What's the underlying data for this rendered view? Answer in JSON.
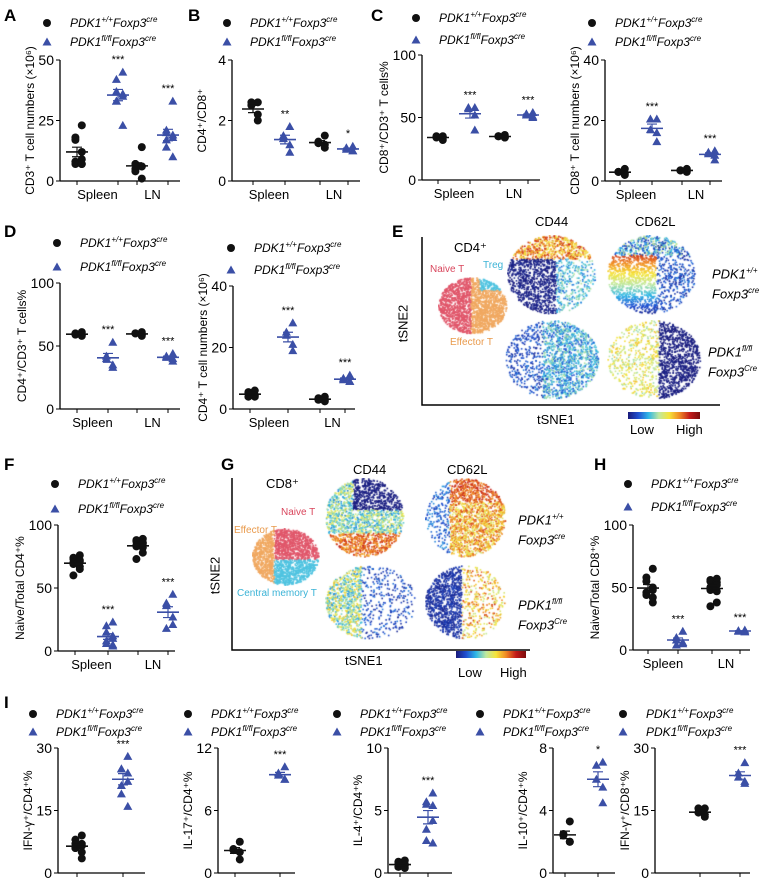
{
  "panel_labels": [
    "A",
    "B",
    "C",
    "D",
    "E",
    "F",
    "G",
    "H",
    "I"
  ],
  "legend": {
    "wt": [
      "PDK1",
      "+/+",
      "Foxp3",
      "cre"
    ],
    "ko": [
      "PDK1",
      "fl/fl",
      "Foxp3",
      "cre"
    ]
  },
  "colors": {
    "wt": "#111111",
    "ko": "#3b4fa6"
  },
  "tsne_E": {
    "subset": "CD4⁺",
    "markers": [
      "CD44",
      "CD62L"
    ],
    "clusters": [
      "Naive T",
      "Treg",
      "Effector T"
    ],
    "cluster_colors": [
      "#e0566a",
      "#4fc3e0",
      "#f0a860"
    ],
    "xlabel": "tSNE1",
    "ylabel": "tSNE2",
    "colorbar": [
      "Low",
      "High"
    ],
    "rows": [
      {
        "gene": "PDK1",
        "geno": "+/+",
        "foxp": "Foxp3",
        "cre": "cre"
      },
      {
        "gene": "PDK1",
        "geno": "fl/fl",
        "foxp": "Foxp3",
        "cre": "Cre"
      }
    ]
  },
  "tsne_G": {
    "subset": "CD8⁺",
    "markers": [
      "CD44",
      "CD62L"
    ],
    "clusters": [
      "Naive T",
      "Effector T",
      "Central memory T"
    ],
    "cluster_colors": [
      "#e0566a",
      "#f0a860",
      "#4fc3e0"
    ],
    "xlabel": "tSNE1",
    "ylabel": "tSNE2",
    "colorbar": [
      "Low",
      "High"
    ],
    "rows": [
      {
        "gene": "PDK1",
        "geno": "+/+",
        "foxp": "Foxp3",
        "cre": "cre"
      },
      {
        "gene": "PDK1",
        "geno": "fl/fl",
        "foxp": "Foxp3",
        "cre": "Cre"
      }
    ]
  },
  "chart_data": [
    {
      "panel": "A",
      "type": "scatter",
      "ylabel": "CD3⁺ T cell numbers (×10⁶)",
      "ylim": [
        0,
        50
      ],
      "yticks": [
        "0",
        "25",
        "50"
      ],
      "categories": [
        "Spleen",
        "LN"
      ],
      "series": [
        {
          "name": "PDK1+/+Foxp3cre",
          "groups": [
            [
              23,
              18,
              17,
              12,
              9,
              8,
              7,
              7,
              7
            ],
            [
              14,
              7,
              7,
              6,
              6,
              5,
              4,
              1
            ]
          ]
        },
        {
          "name": "PDK1fl/flFoxp3cre",
          "groups": [
            [
              45,
              42,
              37,
              36,
              35,
              33,
              33,
              23
            ],
            [
              33,
              21,
              20,
              19,
              18,
              17,
              14,
              10
            ]
          ]
        }
      ],
      "significance": [
        "***",
        "***"
      ]
    },
    {
      "panel": "B",
      "type": "scatter",
      "ylabel": "CD4⁺/CD8⁺",
      "ylim": [
        0,
        4
      ],
      "yticks": [
        "0",
        "2",
        "4"
      ],
      "categories": [
        "Spleen",
        "LN"
      ],
      "series": [
        {
          "name": "PDK1+/+Foxp3cre",
          "groups": [
            [
              2.6,
              2.6,
              2.5,
              2.2,
              2.0
            ],
            [
              1.5,
              1.3,
              1.25,
              1.2,
              1.1
            ]
          ]
        },
        {
          "name": "PDK1fl/flFoxp3cre",
          "groups": [
            [
              1.8,
              1.5,
              1.4,
              1.2,
              0.95
            ],
            [
              1.15,
              1.1,
              1.05,
              1.0,
              1.0
            ]
          ]
        }
      ],
      "significance": [
        "**",
        "*"
      ]
    },
    {
      "panel": "C",
      "type": "scatter",
      "ylabel": "CD8⁺/CD3⁺ T cells%",
      "ylim": [
        0,
        100
      ],
      "yticks": [
        "0",
        "50",
        "100"
      ],
      "categories": [
        "Spleen",
        "LN"
      ],
      "series": [
        {
          "name": "PDK1+/+Foxp3cre",
          "groups": [
            [
              35,
              35,
              34,
              34,
              32
            ],
            [
              36,
              35,
              35,
              34,
              34
            ]
          ]
        },
        {
          "name": "PDK1fl/flFoxp3cre",
          "groups": [
            [
              58,
              58,
              57,
              52,
              40
            ],
            [
              54,
              53,
              52,
              51,
              50
            ]
          ]
        }
      ],
      "significance": [
        "***",
        "***"
      ]
    },
    {
      "panel": "C",
      "type": "scatter",
      "ylabel": "CD8⁺ T cell numbers (×10⁶)",
      "ylim": [
        0,
        40
      ],
      "yticks": [
        "0",
        "20",
        "40"
      ],
      "categories": [
        "Spleen",
        "LN"
      ],
      "series": [
        {
          "name": "PDK1+/+Foxp3cre",
          "groups": [
            [
              4,
              3,
              3,
              2.5,
              2
            ],
            [
              4,
              3.5,
              3.5,
              3.5,
              3
            ]
          ]
        },
        {
          "name": "PDK1fl/flFoxp3cre",
          "groups": [
            [
              20.5,
              20.5,
              17,
              16,
              13
            ],
            [
              10,
              9.5,
              9,
              8.5,
              7
            ]
          ]
        }
      ],
      "significance": [
        "***",
        "***"
      ]
    },
    {
      "panel": "D",
      "type": "scatter",
      "ylabel": "CD4⁺/CD3⁺ T cells%",
      "ylim": [
        0,
        100
      ],
      "yticks": [
        "0",
        "50",
        "100"
      ],
      "categories": [
        "Spleen",
        "LN"
      ],
      "series": [
        {
          "name": "PDK1+/+Foxp3cre",
          "groups": [
            [
              61,
              60,
              59,
              59,
              58
            ],
            [
              61,
              60,
              60,
              59,
              58
            ]
          ]
        },
        {
          "name": "PDK1fl/flFoxp3cre",
          "groups": [
            [
              53,
              42,
              40,
              35,
              33
            ],
            [
              44,
              42,
              41,
              40,
              38
            ]
          ]
        }
      ],
      "significance": [
        "***",
        "***"
      ]
    },
    {
      "panel": "D",
      "type": "scatter",
      "ylabel": "CD4⁺ T cell numbers (×10⁶)",
      "ylim": [
        0,
        40
      ],
      "yticks": [
        "0",
        "20",
        "40"
      ],
      "categories": [
        "Spleen",
        "LN"
      ],
      "series": [
        {
          "name": "PDK1+/+Foxp3cre",
          "groups": [
            [
              6,
              5.5,
              5,
              4.5,
              4,
              4
            ],
            [
              4,
              3.5,
              3,
              3,
              2.5
            ]
          ]
        },
        {
          "name": "PDK1fl/flFoxp3cre",
          "groups": [
            [
              28,
              25,
              24,
              21,
              19
            ],
            [
              11,
              10,
              9.5,
              9,
              9
            ]
          ]
        }
      ],
      "significance": [
        "***",
        "***"
      ]
    },
    {
      "panel": "F",
      "type": "scatter",
      "ylabel": "Naive/Total CD4⁺%",
      "ylim": [
        0,
        100
      ],
      "yticks": [
        "0",
        "50",
        "100"
      ],
      "categories": [
        "Spleen",
        "LN"
      ],
      "series": [
        {
          "name": "PDK1+/+Foxp3cre",
          "groups": [
            [
              76,
              74,
              73,
              72,
              71,
              70,
              69,
              67,
              65,
              60
            ],
            [
              89,
              88,
              87,
              86,
              85,
              84,
              83,
              82,
              78,
              73
            ]
          ]
        },
        {
          "name": "PDK1fl/flFoxp3cre",
          "groups": [
            [
              23,
              20,
              15,
              12,
              10,
              8,
              6,
              5,
              4
            ],
            [
              45,
              38,
              36,
              27,
              21,
              18
            ]
          ]
        }
      ],
      "significance": [
        "***",
        "***"
      ]
    },
    {
      "panel": "H",
      "type": "scatter",
      "ylabel": "Naive/Total CD8⁺%",
      "ylim": [
        0,
        100
      ],
      "yticks": [
        "0",
        "50",
        "100"
      ],
      "categories": [
        "Spleen",
        "LN"
      ],
      "series": [
        {
          "name": "PDK1+/+Foxp3cre",
          "groups": [
            [
              65,
              58,
              55,
              50,
              48,
              46,
              44,
              42,
              38
            ],
            [
              57,
              56,
              55,
              54,
              52,
              50,
              48,
              47,
              38,
              35
            ]
          ]
        },
        {
          "name": "PDK1fl/flFoxp3cre",
          "groups": [
            [
              15,
              10,
              8,
              6,
              5,
              4
            ],
            [
              16,
              15.5,
              15,
              15,
              14.5
            ]
          ]
        }
      ],
      "significance": [
        "***",
        "***"
      ]
    },
    {
      "panel": "I",
      "type": "scatter",
      "ylabel": "IFN-γ⁺/CD4⁺%",
      "ylim": [
        0,
        30
      ],
      "yticks": [
        "0",
        "15",
        "30"
      ],
      "categories": [],
      "series": [
        {
          "name": "PDK1+/+Foxp3cre",
          "groups": [
            [
              9,
              8,
              7,
              7,
              6.5,
              6,
              6,
              5,
              3.5
            ]
          ]
        },
        {
          "name": "PDK1fl/flFoxp3cre",
          "groups": [
            [
              28,
              25,
              25,
              24,
              22,
              21,
              19,
              16
            ]
          ]
        }
      ],
      "significance": [
        "***"
      ]
    },
    {
      "panel": "I",
      "type": "scatter",
      "ylabel": "IL-17⁺/CD4⁺%",
      "ylim": [
        0,
        12
      ],
      "yticks": [
        "0",
        "6",
        "12"
      ],
      "categories": [],
      "series": [
        {
          "name": "PDK1+/+Foxp3cre",
          "groups": [
            [
              3,
              2.3,
              2.2,
              2.0,
              1.3
            ]
          ]
        },
        {
          "name": "PDK1fl/flFoxp3cre",
          "groups": [
            [
              10.2,
              9.6,
              9.4,
              9.0,
              9.0
            ]
          ]
        }
      ],
      "significance": [
        "***"
      ]
    },
    {
      "panel": "I",
      "type": "scatter",
      "ylabel": "IL-4⁺/CD4⁺%",
      "ylim": [
        0,
        10
      ],
      "yticks": [
        "0",
        "5",
        "10"
      ],
      "categories": [],
      "series": [
        {
          "name": "PDK1+/+Foxp3cre",
          "groups": [
            [
              1.0,
              0.9,
              0.8,
              0.7,
              0.6,
              0.5,
              0.5,
              0.4
            ]
          ]
        },
        {
          "name": "PDK1fl/flFoxp3cre",
          "groups": [
            [
              6.4,
              5.7,
              5.5,
              5.4,
              4.2,
              3.5,
              2.6,
              2.4
            ]
          ]
        }
      ],
      "significance": [
        "***"
      ]
    },
    {
      "panel": "I",
      "type": "scatter",
      "ylabel": "IL-10⁺/CD4⁺%",
      "ylim": [
        0,
        8
      ],
      "yticks": [
        "0",
        "4",
        "8"
      ],
      "categories": [],
      "series": [
        {
          "name": "PDK1+/+Foxp3cre",
          "groups": [
            [
              3.3,
              2.5,
              2.4,
              2.0,
              2.0
            ]
          ]
        },
        {
          "name": "PDK1fl/flFoxp3cre",
          "groups": [
            [
              7.1,
              6.9,
              6.0,
              5.5,
              4.5
            ]
          ]
        }
      ],
      "significance": [
        "*"
      ]
    },
    {
      "panel": "I",
      "type": "scatter",
      "ylabel": "IFN-γ⁺/CD8⁺%",
      "ylim": [
        0,
        30
      ],
      "yticks": [
        "0",
        "15",
        "30"
      ],
      "categories": [],
      "series": [
        {
          "name": "PDK1+/+Foxp3cre",
          "groups": [
            [
              15.5,
              15.5,
              14.5,
              14,
              13.5
            ]
          ]
        },
        {
          "name": "PDK1fl/flFoxp3cre",
          "groups": [
            [
              26.5,
              24,
              23,
              22,
              21.5
            ]
          ]
        }
      ],
      "significance": [
        "***"
      ]
    }
  ]
}
